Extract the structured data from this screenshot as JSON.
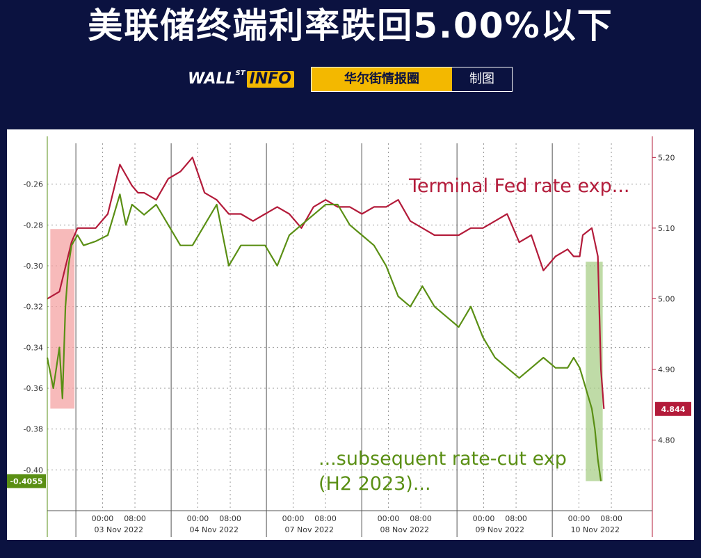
{
  "header": {
    "headline": "美联储终端利率跌回5.00%以下",
    "logo_main": "WALL",
    "logo_sup": "ST",
    "logo_info": "INFO",
    "badge_primary": "华尔街情报圈",
    "badge_secondary": "制图"
  },
  "colors": {
    "background": "#0b1240",
    "accent": "#f3b800",
    "terminal": "#b31b3a",
    "ratecut": "#5a8f14",
    "pink_band": "#f4a3a3",
    "green_band": "#a9cf8a"
  },
  "chart_data": {
    "type": "line",
    "title": "",
    "xlabel": "",
    "ylabel": "",
    "x_tick_labels": [
      {
        "time": [
          "00:00",
          "08:00"
        ],
        "date": "03 Nov 2022"
      },
      {
        "time": [
          "00:00",
          "08:00"
        ],
        "date": "04 Nov 2022"
      },
      {
        "time": [
          "00:00",
          "08:00"
        ],
        "date": "07 Nov 2022"
      },
      {
        "time": [
          "00:00",
          "08:00"
        ],
        "date": "08 Nov 2022"
      },
      {
        "time": [
          "00:00",
          "08:00"
        ],
        "date": "09 Nov 2022"
      },
      {
        "time": [
          "00:00",
          "08:00"
        ],
        "date": "10 Nov 2022"
      }
    ],
    "left_axis": {
      "ylim": [
        -0.42,
        -0.24
      ],
      "ticks": [
        "-0.26",
        "-0.28",
        "-0.30",
        "-0.32",
        "-0.34",
        "-0.36",
        "-0.38",
        "-0.40"
      ]
    },
    "right_axis": {
      "ylim": [
        4.7,
        5.22
      ],
      "ticks": [
        "5.20",
        "5.10",
        "5.00",
        "4.90",
        "4.80"
      ]
    },
    "grid": true,
    "annotations": [
      "Terminal Fed rate exp...",
      "...subsequent rate-cut exp",
      "(H2 2023)..."
    ],
    "last_value_labels": {
      "ratecut": "-0.4055",
      "terminal": "4.844"
    },
    "series": [
      {
        "axis": "right",
        "x": [
          0,
          0.02,
          0.04,
          0.05,
          0.06,
          0.08,
          0.1,
          0.12,
          0.14,
          0.15,
          0.16,
          0.18,
          0.2,
          0.22,
          0.24,
          0.26,
          0.28,
          0.3,
          0.32,
          0.34,
          0.36,
          0.38,
          0.4,
          0.42,
          0.44,
          0.46,
          0.48,
          0.5,
          0.52,
          0.54,
          0.56,
          0.58,
          0.6,
          0.62,
          0.64,
          0.66,
          0.68,
          0.7,
          0.72,
          0.74,
          0.76,
          0.78,
          0.8,
          0.82,
          0.84,
          0.86,
          0.87,
          0.88,
          0.885,
          0.9,
          0.905,
          0.91,
          0.915,
          0.92
        ],
        "values": [
          5.0,
          5.01,
          5.08,
          5.1,
          5.1,
          5.1,
          5.12,
          5.19,
          5.16,
          5.15,
          5.15,
          5.14,
          5.17,
          5.18,
          5.2,
          5.15,
          5.14,
          5.12,
          5.12,
          5.11,
          5.12,
          5.13,
          5.12,
          5.1,
          5.13,
          5.14,
          5.13,
          5.13,
          5.12,
          5.13,
          5.13,
          5.14,
          5.11,
          5.1,
          5.09,
          5.09,
          5.09,
          5.1,
          5.1,
          5.11,
          5.12,
          5.08,
          5.09,
          5.04,
          5.06,
          5.07,
          5.06,
          5.06,
          5.09,
          5.1,
          5.08,
          5.06,
          4.9,
          4.844
        ]
      },
      {
        "axis": "left",
        "x": [
          0,
          0.01,
          0.02,
          0.025,
          0.03,
          0.035,
          0.04,
          0.05,
          0.06,
          0.08,
          0.1,
          0.12,
          0.13,
          0.14,
          0.16,
          0.18,
          0.2,
          0.22,
          0.24,
          0.26,
          0.28,
          0.3,
          0.32,
          0.34,
          0.36,
          0.38,
          0.4,
          0.42,
          0.44,
          0.46,
          0.48,
          0.5,
          0.52,
          0.54,
          0.56,
          0.58,
          0.6,
          0.62,
          0.64,
          0.66,
          0.68,
          0.7,
          0.72,
          0.74,
          0.76,
          0.78,
          0.8,
          0.82,
          0.84,
          0.86,
          0.87,
          0.88,
          0.885,
          0.89,
          0.9,
          0.905,
          0.91,
          0.915
        ],
        "values": [
          -0.345,
          -0.36,
          -0.34,
          -0.365,
          -0.32,
          -0.3,
          -0.29,
          -0.285,
          -0.29,
          -0.288,
          -0.285,
          -0.265,
          -0.28,
          -0.27,
          -0.275,
          -0.27,
          -0.28,
          -0.29,
          -0.29,
          -0.28,
          -0.27,
          -0.3,
          -0.29,
          -0.29,
          -0.29,
          -0.3,
          -0.285,
          -0.28,
          -0.275,
          -0.27,
          -0.27,
          -0.28,
          -0.285,
          -0.29,
          -0.3,
          -0.315,
          -0.32,
          -0.31,
          -0.32,
          -0.325,
          -0.33,
          -0.32,
          -0.335,
          -0.345,
          -0.35,
          -0.355,
          -0.35,
          -0.345,
          -0.35,
          -0.35,
          -0.345,
          -0.35,
          -0.355,
          -0.36,
          -0.37,
          -0.38,
          -0.395,
          -0.4055
        ]
      }
    ]
  }
}
